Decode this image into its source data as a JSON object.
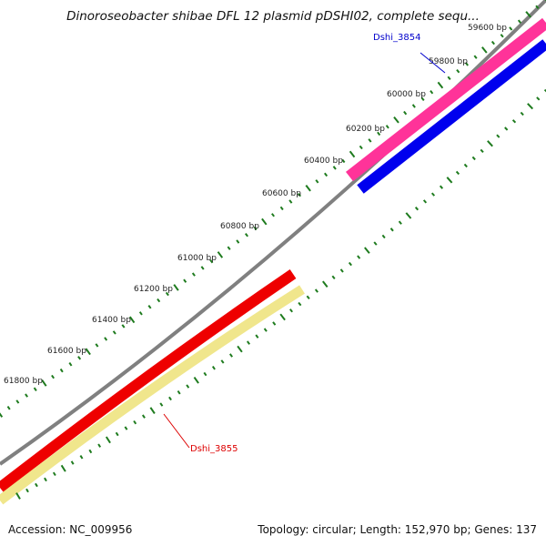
{
  "title": "Dinoroseobacter shibae DFL 12 plasmid pDSHI02, complete sequ...",
  "footer": {
    "accession": "Accession: NC_009956",
    "summary": "Topology: circular; Length: 152,970 bp; Genes: 137"
  },
  "colors": {
    "backbone": "#808080",
    "tick": "#1e7b1e",
    "gene_a_fwd": "#ff3399",
    "gene_a_rev": "#0000ee",
    "gene_b_fwd": "#ee0000",
    "gene_b_rev": "#f0e68c"
  },
  "ticks": [
    {
      "label": "59600 bp"
    },
    {
      "label": "59800 bp"
    },
    {
      "label": "60000 bp"
    },
    {
      "label": "60200 bp"
    },
    {
      "label": "60400 bp"
    },
    {
      "label": "60600 bp"
    },
    {
      "label": "60800 bp"
    },
    {
      "label": "61000 bp"
    },
    {
      "label": "61200 bp"
    },
    {
      "label": "61400 bp"
    },
    {
      "label": "61600 bp"
    },
    {
      "label": "61800 bp"
    }
  ],
  "genes": [
    {
      "name": "Dshi_3854",
      "color": "#0000cc"
    },
    {
      "name": "Dshi_3855",
      "color": "#dd0000"
    }
  ]
}
